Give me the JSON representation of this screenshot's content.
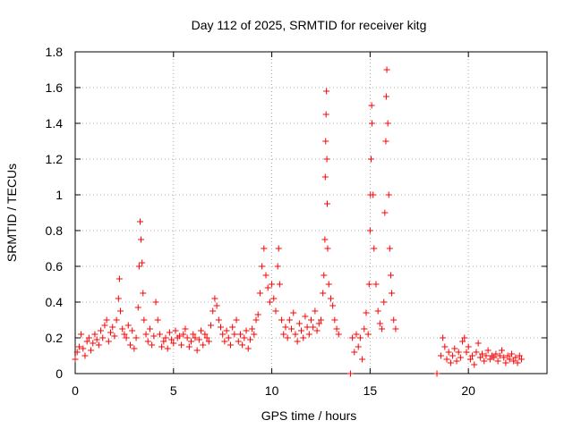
{
  "chart_data": {
    "type": "scatter",
    "title": "Day 112 of 2025, SRMTID for receiver kitg",
    "xlabel": "GPS time / hours",
    "ylabel": "SRMTID / TECUs",
    "xlim": [
      0,
      24
    ],
    "ylim": [
      0,
      1.8
    ],
    "xticks": [
      0,
      5,
      10,
      15,
      20
    ],
    "xtick_labels": [
      "0",
      "5",
      "10",
      "15",
      "20"
    ],
    "yticks": [
      0,
      0.2,
      0.4,
      0.6,
      0.8,
      1.0,
      1.2,
      1.4,
      1.6,
      1.8
    ],
    "ytick_labels": [
      "0",
      "0.2",
      "0.4",
      "0.6",
      "0.8",
      "1",
      "1.2",
      "1.4",
      "1.6",
      "1.8"
    ],
    "grid": true,
    "marker": "+",
    "color": "#ff0000",
    "series": [
      {
        "name": "SRMTID",
        "points": [
          [
            0.0,
            0.08
          ],
          [
            0.1,
            0.12
          ],
          [
            0.2,
            0.15
          ],
          [
            0.3,
            0.22
          ],
          [
            0.4,
            0.14
          ],
          [
            0.5,
            0.1
          ],
          [
            0.6,
            0.18
          ],
          [
            0.7,
            0.2
          ],
          [
            0.8,
            0.13
          ],
          [
            0.9,
            0.17
          ],
          [
            1.0,
            0.22
          ],
          [
            1.1,
            0.19
          ],
          [
            1.2,
            0.16
          ],
          [
            1.3,
            0.24
          ],
          [
            1.4,
            0.2
          ],
          [
            1.5,
            0.27
          ],
          [
            1.6,
            0.3
          ],
          [
            1.7,
            0.18
          ],
          [
            1.8,
            0.23
          ],
          [
            1.9,
            0.26
          ],
          [
            2.0,
            0.21
          ],
          [
            2.1,
            0.3
          ],
          [
            2.2,
            0.42
          ],
          [
            2.25,
            0.53
          ],
          [
            2.3,
            0.35
          ],
          [
            2.4,
            0.25
          ],
          [
            2.5,
            0.22
          ],
          [
            2.6,
            0.2
          ],
          [
            2.7,
            0.27
          ],
          [
            2.8,
            0.16
          ],
          [
            2.9,
            0.24
          ],
          [
            3.0,
            0.14
          ],
          [
            3.1,
            0.2
          ],
          [
            3.2,
            0.37
          ],
          [
            3.25,
            0.6
          ],
          [
            3.3,
            0.85
          ],
          [
            3.35,
            0.75
          ],
          [
            3.4,
            0.62
          ],
          [
            3.45,
            0.45
          ],
          [
            3.5,
            0.3
          ],
          [
            3.6,
            0.22
          ],
          [
            3.7,
            0.18
          ],
          [
            3.8,
            0.25
          ],
          [
            3.9,
            0.16
          ],
          [
            4.0,
            0.21
          ],
          [
            4.1,
            0.4
          ],
          [
            4.2,
            0.3
          ],
          [
            4.3,
            0.22
          ],
          [
            4.4,
            0.15
          ],
          [
            4.5,
            0.18
          ],
          [
            4.6,
            0.2
          ],
          [
            4.7,
            0.14
          ],
          [
            4.8,
            0.23
          ],
          [
            4.9,
            0.19
          ],
          [
            5.0,
            0.17
          ],
          [
            5.1,
            0.24
          ],
          [
            5.2,
            0.2
          ],
          [
            5.3,
            0.21
          ],
          [
            5.4,
            0.16
          ],
          [
            5.5,
            0.22
          ],
          [
            5.6,
            0.25
          ],
          [
            5.7,
            0.2
          ],
          [
            5.8,
            0.15
          ],
          [
            5.9,
            0.18
          ],
          [
            6.0,
            0.22
          ],
          [
            6.1,
            0.2
          ],
          [
            6.2,
            0.13
          ],
          [
            6.3,
            0.19
          ],
          [
            6.4,
            0.24
          ],
          [
            6.5,
            0.16
          ],
          [
            6.6,
            0.22
          ],
          [
            6.7,
            0.2
          ],
          [
            6.8,
            0.18
          ],
          [
            6.9,
            0.27
          ],
          [
            7.0,
            0.35
          ],
          [
            7.1,
            0.42
          ],
          [
            7.2,
            0.38
          ],
          [
            7.3,
            0.3
          ],
          [
            7.4,
            0.26
          ],
          [
            7.5,
            0.22
          ],
          [
            7.6,
            0.18
          ],
          [
            7.7,
            0.24
          ],
          [
            7.8,
            0.2
          ],
          [
            7.9,
            0.16
          ],
          [
            8.0,
            0.26
          ],
          [
            8.1,
            0.22
          ],
          [
            8.2,
            0.3
          ],
          [
            8.3,
            0.18
          ],
          [
            8.4,
            0.22
          ],
          [
            8.5,
            0.16
          ],
          [
            8.6,
            0.2
          ],
          [
            8.7,
            0.24
          ],
          [
            8.8,
            0.14
          ],
          [
            8.9,
            0.19
          ],
          [
            9.0,
            0.25
          ],
          [
            9.1,
            0.22
          ],
          [
            9.2,
            0.3
          ],
          [
            9.3,
            0.33
          ],
          [
            9.4,
            0.45
          ],
          [
            9.5,
            0.6
          ],
          [
            9.6,
            0.7
          ],
          [
            9.7,
            0.55
          ],
          [
            9.8,
            0.48
          ],
          [
            9.9,
            0.4
          ],
          [
            10.0,
            0.5
          ],
          [
            10.1,
            0.42
          ],
          [
            10.2,
            0.35
          ],
          [
            10.3,
            0.6
          ],
          [
            10.35,
            0.7
          ],
          [
            10.4,
            0.5
          ],
          [
            10.5,
            0.3
          ],
          [
            10.6,
            0.22
          ],
          [
            10.7,
            0.26
          ],
          [
            10.8,
            0.2
          ],
          [
            10.9,
            0.3
          ],
          [
            11.0,
            0.25
          ],
          [
            11.1,
            0.34
          ],
          [
            11.2,
            0.22
          ],
          [
            11.3,
            0.18
          ],
          [
            11.4,
            0.28
          ],
          [
            11.5,
            0.24
          ],
          [
            11.6,
            0.2
          ],
          [
            11.7,
            0.32
          ],
          [
            11.8,
            0.26
          ],
          [
            11.9,
            0.22
          ],
          [
            12.0,
            0.3
          ],
          [
            12.1,
            0.26
          ],
          [
            12.2,
            0.35
          ],
          [
            12.3,
            0.24
          ],
          [
            12.4,
            0.28
          ],
          [
            12.5,
            0.3
          ],
          [
            12.6,
            0.45
          ],
          [
            12.65,
            0.55
          ],
          [
            12.7,
            0.75
          ],
          [
            12.72,
            1.1
          ],
          [
            12.74,
            1.3
          ],
          [
            12.76,
            1.45
          ],
          [
            12.78,
            1.58
          ],
          [
            12.8,
            1.2
          ],
          [
            12.82,
            0.95
          ],
          [
            12.84,
            0.7
          ],
          [
            12.9,
            0.5
          ],
          [
            13.0,
            0.42
          ],
          [
            13.1,
            0.38
          ],
          [
            13.2,
            0.3
          ],
          [
            13.3,
            0.25
          ],
          [
            13.4,
            0.22
          ],
          [
            14.0,
            0.0
          ],
          [
            14.1,
            0.2
          ],
          [
            14.2,
            0.12
          ],
          [
            14.3,
            0.22
          ],
          [
            14.4,
            0.15
          ],
          [
            14.5,
            0.2
          ],
          [
            14.6,
            0.08
          ],
          [
            14.7,
            0.25
          ],
          [
            14.8,
            0.34
          ],
          [
            14.9,
            0.22
          ],
          [
            14.95,
            0.5
          ],
          [
            15.0,
            0.8
          ],
          [
            15.02,
            1.0
          ],
          [
            15.05,
            1.2
          ],
          [
            15.08,
            1.5
          ],
          [
            15.1,
            1.4
          ],
          [
            15.15,
            1.0
          ],
          [
            15.2,
            0.7
          ],
          [
            15.3,
            0.5
          ],
          [
            15.4,
            0.35
          ],
          [
            15.5,
            0.28
          ],
          [
            15.6,
            0.25
          ],
          [
            15.7,
            0.4
          ],
          [
            15.75,
            0.9
          ],
          [
            15.8,
            1.3
          ],
          [
            15.82,
            1.55
          ],
          [
            15.85,
            1.7
          ],
          [
            15.9,
            1.4
          ],
          [
            15.95,
            1.0
          ],
          [
            16.0,
            0.7
          ],
          [
            16.05,
            0.55
          ],
          [
            16.1,
            0.45
          ],
          [
            16.2,
            0.3
          ],
          [
            16.3,
            0.25
          ],
          [
            18.4,
            0.0
          ],
          [
            18.6,
            0.1
          ],
          [
            18.7,
            0.2
          ],
          [
            18.8,
            0.15
          ],
          [
            18.9,
            0.08
          ],
          [
            19.0,
            0.12
          ],
          [
            19.1,
            0.06
          ],
          [
            19.2,
            0.1
          ],
          [
            19.3,
            0.14
          ],
          [
            19.4,
            0.07
          ],
          [
            19.5,
            0.12
          ],
          [
            19.6,
            0.09
          ],
          [
            19.7,
            0.18
          ],
          [
            19.8,
            0.2
          ],
          [
            19.9,
            0.12
          ],
          [
            20.0,
            0.15
          ],
          [
            20.1,
            0.08
          ],
          [
            20.2,
            0.1
          ],
          [
            20.3,
            0.05
          ],
          [
            20.4,
            0.12
          ],
          [
            20.5,
            0.17
          ],
          [
            20.6,
            0.09
          ],
          [
            20.7,
            0.11
          ],
          [
            20.8,
            0.07
          ],
          [
            20.9,
            0.1
          ],
          [
            21.0,
            0.13
          ],
          [
            21.1,
            0.08
          ],
          [
            21.2,
            0.1
          ],
          [
            21.3,
            0.09
          ],
          [
            21.4,
            0.11
          ],
          [
            21.5,
            0.07
          ],
          [
            21.6,
            0.1
          ],
          [
            21.7,
            0.13
          ],
          [
            21.8,
            0.09
          ],
          [
            21.9,
            0.06
          ],
          [
            22.0,
            0.1
          ],
          [
            22.1,
            0.08
          ],
          [
            22.2,
            0.11
          ],
          [
            22.3,
            0.07
          ],
          [
            22.4,
            0.09
          ],
          [
            22.5,
            0.06
          ],
          [
            22.6,
            0.1
          ],
          [
            22.7,
            0.08
          ]
        ]
      }
    ]
  }
}
